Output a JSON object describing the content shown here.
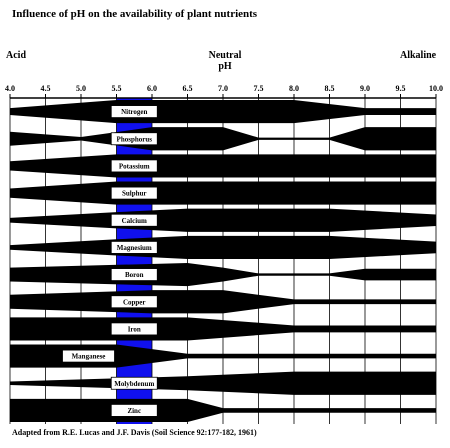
{
  "title": "Influence of pH  on the availability of plant nutrients",
  "labels": {
    "acid": "Acid",
    "neutral": "Neutral",
    "ph": "pH",
    "alkaline": "Alkaline"
  },
  "footer": "Adapted from R.E. Lucas and J.F. Davis (Soil Science 92:177-182, 1961)",
  "colors": {
    "band": "#000000",
    "highlight": "#1010ee",
    "background": "#ffffff"
  },
  "chart_data": {
    "type": "band-chart",
    "x_ticks": [
      "4.0",
      "4.5",
      "5.0",
      "5.5",
      "6.0",
      "6.5",
      "7.0",
      "7.5",
      "8.0",
      "8.5",
      "9.0",
      "9.5",
      "10.0"
    ],
    "x_range": [
      4.0,
      10.0
    ],
    "highlight_range": [
      5.5,
      6.0
    ],
    "nutrients": [
      {
        "name": "Nitrogen",
        "profile": [
          [
            4.0,
            0.3
          ],
          [
            5.5,
            1.0
          ],
          [
            6.5,
            1.0
          ],
          [
            8.0,
            1.0
          ],
          [
            9.0,
            0.3
          ],
          [
            10.0,
            0.3
          ]
        ]
      },
      {
        "name": "Phosphorus",
        "profile": [
          [
            4.0,
            0.6
          ],
          [
            5.0,
            0.15
          ],
          [
            6.0,
            1.0
          ],
          [
            7.0,
            1.0
          ],
          [
            7.5,
            0.1
          ],
          [
            8.5,
            0.1
          ],
          [
            9.0,
            1.0
          ],
          [
            10.0,
            1.0
          ]
        ]
      },
      {
        "name": "Potassium",
        "profile": [
          [
            4.0,
            0.4
          ],
          [
            5.5,
            1.0
          ],
          [
            10.0,
            1.0
          ]
        ]
      },
      {
        "name": "Sulphur",
        "profile": [
          [
            4.0,
            0.4
          ],
          [
            5.5,
            1.0
          ],
          [
            10.0,
            1.0
          ]
        ]
      },
      {
        "name": "Calcium",
        "profile": [
          [
            4.0,
            0.2
          ],
          [
            5.5,
            0.7
          ],
          [
            6.5,
            1.0
          ],
          [
            8.5,
            1.0
          ],
          [
            10.0,
            0.5
          ]
        ]
      },
      {
        "name": "Magnesium",
        "profile": [
          [
            4.0,
            0.2
          ],
          [
            5.5,
            0.7
          ],
          [
            6.5,
            1.0
          ],
          [
            8.5,
            1.0
          ],
          [
            10.0,
            0.5
          ]
        ]
      },
      {
        "name": "Boron",
        "profile": [
          [
            4.0,
            0.6
          ],
          [
            6.5,
            1.0
          ],
          [
            7.0,
            0.6
          ],
          [
            7.5,
            0.1
          ],
          [
            8.5,
            0.1
          ],
          [
            9.0,
            0.5
          ],
          [
            10.0,
            0.5
          ]
        ]
      },
      {
        "name": "Copper",
        "profile": [
          [
            4.0,
            0.6
          ],
          [
            6.0,
            1.0
          ],
          [
            7.0,
            1.0
          ],
          [
            8.0,
            0.2
          ],
          [
            10.0,
            0.2
          ]
        ]
      },
      {
        "name": "Iron",
        "profile": [
          [
            4.0,
            1.0
          ],
          [
            6.5,
            1.0
          ],
          [
            8.0,
            0.3
          ],
          [
            10.0,
            0.3
          ]
        ]
      },
      {
        "name": "Manganese",
        "profile": [
          [
            4.0,
            1.0
          ],
          [
            5.5,
            1.0
          ],
          [
            6.5,
            0.2
          ],
          [
            10.0,
            0.2
          ]
        ]
      },
      {
        "name": "Molybdenum",
        "profile": [
          [
            4.0,
            0.15
          ],
          [
            6.5,
            0.6
          ],
          [
            8.0,
            1.0
          ],
          [
            10.0,
            1.0
          ]
        ]
      },
      {
        "name": "Zinc",
        "profile": [
          [
            4.0,
            1.0
          ],
          [
            6.5,
            1.0
          ],
          [
            7.0,
            0.2
          ],
          [
            10.0,
            0.2
          ]
        ]
      }
    ]
  }
}
